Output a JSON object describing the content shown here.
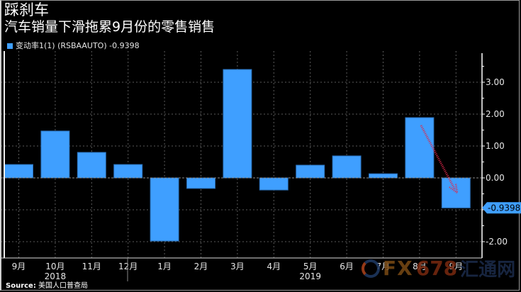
{
  "header": {
    "title": "踩刹车",
    "subtitle": "汽车销量下滑拖累9月份的零售销售"
  },
  "legend": {
    "label": "变动率1(1) (RSBAAUTO) -0.9398",
    "color": "#3f9fff"
  },
  "footer": {
    "source_label": "Source:",
    "source_value": "美国人口普查局"
  },
  "watermark": {
    "fx": "FX",
    "num": "678",
    "cn": "汇通网"
  },
  "last_value_tag": "-0.9398",
  "colors": {
    "bar": "#3f9fff",
    "bar_edge": "#2a6db5",
    "background": "#000000",
    "grid": "#5a5a5a",
    "arrow": "#e0284a",
    "tag_bg": "#3f9fff"
  },
  "chart_data": {
    "type": "bar",
    "title": "踩刹车",
    "subtitle": "汽车销量下滑拖累9月份的零售销售",
    "series": [
      {
        "name": "变动率1(1) (RSBAAUTO)",
        "values": [
          0.42,
          1.47,
          0.8,
          0.42,
          -1.98,
          -0.33,
          3.4,
          -0.38,
          0.4,
          0.69,
          0.13,
          1.89,
          -0.94
        ]
      }
    ],
    "categories": [
      "9月",
      "10月",
      "11月",
      "12月",
      "1月",
      "2月",
      "3月",
      "4月",
      "5月",
      "6月",
      "7月",
      "8月",
      "9月"
    ],
    "year_labels": [
      {
        "label": "2018",
        "under_index": 1
      },
      {
        "label": "2019",
        "under_index": 8
      }
    ],
    "yticks": [
      "3.00",
      "2.00",
      "1.00",
      "0.00",
      "-1.00",
      "-2.00"
    ],
    "ytick_values": [
      3,
      2,
      1,
      0,
      -1,
      -2
    ],
    "ylim": [
      -2.45,
      3.9
    ],
    "xlabel": "",
    "ylabel": "",
    "grid": true,
    "y_axis_position": "right",
    "last_value": -0.9398,
    "annotation": "red dotted arrow from Aug bar down to Sep bar",
    "legend_position": "top-left"
  }
}
